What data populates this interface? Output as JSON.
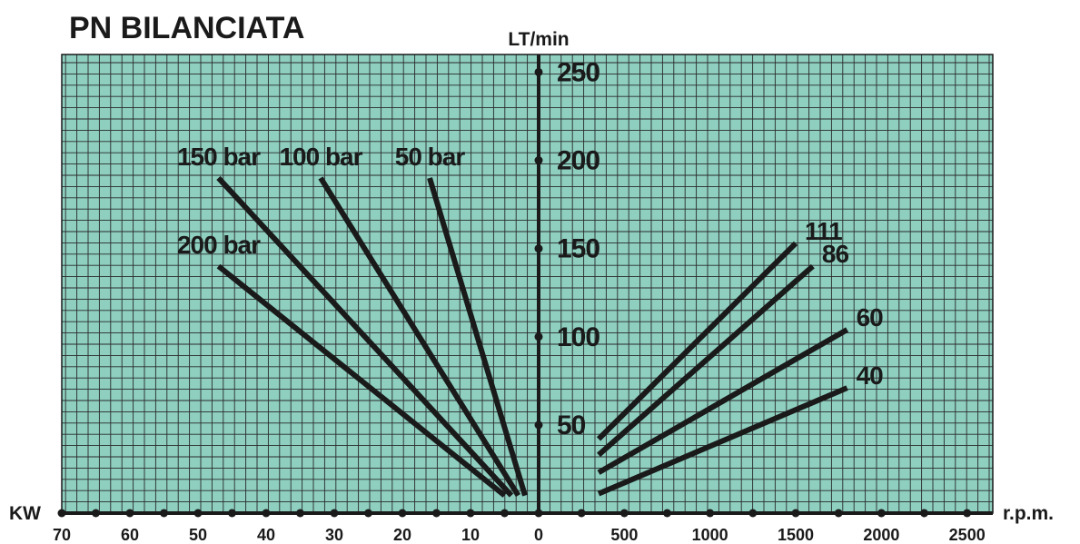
{
  "chart_data": {
    "type": "line",
    "title": "PN BILANCIATA",
    "ylabel": "LT/min",
    "xlabel_left": "KW",
    "xlabel_right": "r.p.m.",
    "y_ticks": [
      "50",
      "100",
      "150",
      "200",
      "250"
    ],
    "y_tick_values": [
      50,
      100,
      150,
      200,
      250
    ],
    "ylim": [
      0,
      260
    ],
    "left_x_ticks": [
      "70",
      "60",
      "50",
      "40",
      "30",
      "20",
      "10",
      "0"
    ],
    "left_x_tick_values": [
      70,
      60,
      50,
      40,
      30,
      20,
      10,
      0
    ],
    "left_xlim": [
      70,
      0
    ],
    "right_x_ticks": [
      "500",
      "1000",
      "1500",
      "2000",
      "2500"
    ],
    "right_x_tick_values": [
      500,
      1000,
      1500,
      2000,
      2500
    ],
    "right_xlim": [
      0,
      2650
    ],
    "grid": true,
    "colors": {
      "grid_bg": "#8ecfc0",
      "line": "#1a1a1a"
    },
    "power_series": [
      {
        "name": "200 bar",
        "points": [
          [
            47,
            140
          ],
          [
            5,
            10
          ]
        ]
      },
      {
        "name": "150 bar",
        "points": [
          [
            47,
            190
          ],
          [
            4,
            10
          ]
        ]
      },
      {
        "name": "100 bar",
        "points": [
          [
            32,
            190
          ],
          [
            3,
            10
          ]
        ]
      },
      {
        "name": "50 bar",
        "points": [
          [
            16,
            190
          ],
          [
            2,
            10
          ]
        ]
      }
    ],
    "flow_series": [
      {
        "name": "111",
        "points": [
          [
            350,
            42
          ],
          [
            1500,
            153
          ]
        ]
      },
      {
        "name": "86",
        "points": [
          [
            350,
            33
          ],
          [
            1600,
            140
          ]
        ]
      },
      {
        "name": "60",
        "points": [
          [
            350,
            23
          ],
          [
            1800,
            104
          ]
        ]
      },
      {
        "name": "40",
        "points": [
          [
            350,
            11
          ],
          [
            1800,
            71
          ]
        ]
      }
    ]
  }
}
